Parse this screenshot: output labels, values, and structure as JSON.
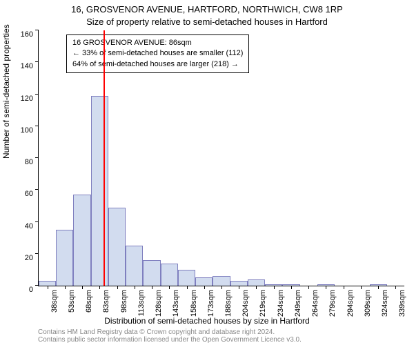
{
  "title_line1": "16, GROSVENOR AVENUE, HARTFORD, NORTHWICH, CW8 1RP",
  "title_line2": "Size of property relative to semi-detached houses in Hartford",
  "ylabel": "Number of semi-detached properties",
  "xlabel": "Distribution of semi-detached houses by size in Hartford",
  "attribution_line1": "Contains HM Land Registry data © Crown copyright and database right 2024.",
  "attribution_line2": "Contains public sector information licensed under the Open Government Licence v3.0.",
  "infobox": {
    "line1": "16 GROSVENOR AVENUE: 86sqm",
    "line2": "← 33% of semi-detached houses are smaller (112)",
    "line3": "64% of semi-detached houses are larger (218) →"
  },
  "chart": {
    "type": "histogram",
    "bar_fill": "#d2dcef",
    "bar_stroke": "#7f7fbf",
    "highlight_color": "#ff0000",
    "highlight_x_value": 86,
    "background_color": "#ffffff",
    "axis_color": "#000000",
    "label_fontsize": 12,
    "tick_fontsize": 11,
    "title_fontsize": 13,
    "ylim": [
      0,
      160
    ],
    "ytick_step": 20,
    "x_start": 30,
    "x_step": 15,
    "x_count": 21,
    "x_unit": "sqm",
    "bar_width_ratio": 1.0,
    "bars": [
      {
        "x": 38,
        "y": 3
      },
      {
        "x": 53,
        "y": 35
      },
      {
        "x": 68,
        "y": 57
      },
      {
        "x": 83,
        "y": 119
      },
      {
        "x": 98,
        "y": 49
      },
      {
        "x": 113,
        "y": 25
      },
      {
        "x": 128,
        "y": 16
      },
      {
        "x": 143,
        "y": 14
      },
      {
        "x": 158,
        "y": 10
      },
      {
        "x": 173,
        "y": 5
      },
      {
        "x": 188,
        "y": 6
      },
      {
        "x": 204,
        "y": 3
      },
      {
        "x": 219,
        "y": 4
      },
      {
        "x": 234,
        "y": 1
      },
      {
        "x": 249,
        "y": 1
      },
      {
        "x": 264,
        "y": 0
      },
      {
        "x": 279,
        "y": 1
      },
      {
        "x": 294,
        "y": 0
      },
      {
        "x": 309,
        "y": 0
      },
      {
        "x": 324,
        "y": 1
      },
      {
        "x": 339,
        "y": 0
      }
    ]
  }
}
